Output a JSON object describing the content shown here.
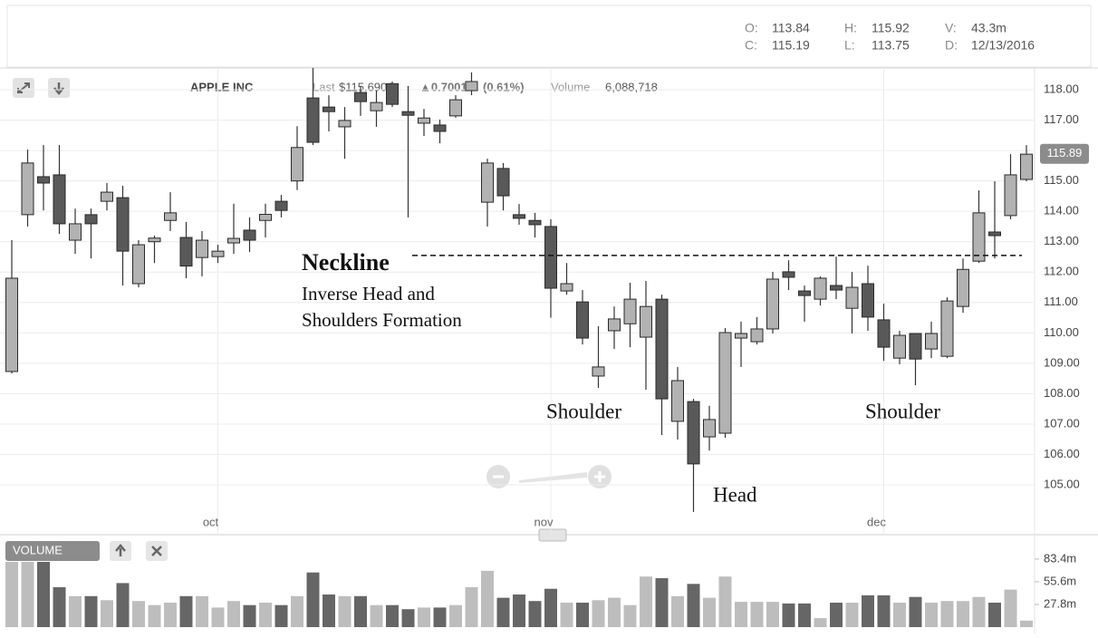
{
  "header": {
    "stats": [
      {
        "label": "O:",
        "value": "113.84"
      },
      {
        "label": "H:",
        "value": "115.92"
      },
      {
        "label": "V:",
        "value": "43.3m"
      },
      {
        "label": "C:",
        "value": "115.19"
      },
      {
        "label": "L:",
        "value": "113.75"
      },
      {
        "label": "D:",
        "value": "12/13/2016"
      }
    ]
  },
  "chart_data": [
    {
      "type": "candlestick",
      "title": "APPLE INC",
      "last_label": "Last",
      "last": "$115.6901",
      "change": "▲0.7001",
      "change_pct": "(0.61%)",
      "volume_label": "Volume",
      "volume": "6,088,718",
      "categories": [
        null,
        null,
        null,
        null,
        null,
        null,
        null,
        null,
        null,
        null,
        null,
        null,
        null,
        "oct",
        null,
        null,
        null,
        null,
        null,
        null,
        null,
        null,
        null,
        null,
        null,
        null,
        null,
        null,
        null,
        null,
        null,
        null,
        null,
        null,
        "nov",
        null,
        null,
        null,
        null,
        null,
        null,
        null,
        null,
        null,
        null,
        null,
        null,
        null,
        null,
        null,
        null,
        null,
        null,
        null,
        null,
        "dec",
        null,
        null,
        null,
        null,
        null,
        null,
        null,
        null,
        null
      ],
      "open": [
        108.73,
        113.89,
        115.14,
        115.2,
        113.05,
        113.89,
        114.33,
        114.45,
        111.62,
        113.0,
        113.7,
        113.14,
        112.48,
        112.51,
        112.96,
        113.38,
        113.7,
        114.33,
        115.0,
        117.73,
        117.43,
        116.78,
        117.91,
        117.31,
        118.2,
        117.28,
        116.9,
        116.84,
        117.14,
        117.97,
        114.3,
        115.41,
        113.89,
        113.7,
        113.5,
        111.38,
        111.02,
        108.58,
        110.07,
        110.3,
        109.86,
        111.11,
        107.09,
        107.74,
        106.58,
        106.7,
        109.83,
        109.71,
        110.13,
        112.01,
        111.38,
        111.11,
        111.56,
        110.81,
        111.62,
        110.43,
        109.17,
        109.98,
        109.47,
        109.23,
        110.87,
        112.36,
        113.32,
        113.86,
        115.05
      ],
      "high": [
        113.05,
        116.03,
        116.18,
        116.18,
        114.09,
        114.09,
        114.93,
        114.84,
        113.05,
        113.2,
        114.63,
        113.65,
        113.35,
        112.9,
        114.25,
        113.8,
        114.25,
        114.54,
        116.8,
        118.72,
        117.82,
        117.43,
        118.12,
        117.97,
        118.27,
        118.12,
        117.37,
        117.02,
        117.82,
        118.57,
        115.73,
        115.59,
        114.24,
        113.95,
        113.74,
        112.3,
        111.41,
        110.22,
        110.87,
        111.65,
        111.71,
        111.26,
        108.88,
        107.83,
        107.6,
        110.16,
        110.37,
        110.52,
        112.01,
        112.39,
        111.56,
        111.86,
        112.51,
        112.01,
        112.21,
        110.96,
        110.07,
        109.98,
        110.37,
        111.17,
        112.45,
        114.69,
        114.99,
        115.88,
        116.18
      ],
      "low": [
        108.67,
        113.5,
        114.03,
        113.26,
        112.6,
        112.45,
        114.03,
        111.56,
        111.5,
        112.3,
        113.35,
        111.8,
        111.86,
        112.3,
        112.6,
        112.66,
        113.14,
        113.8,
        114.7,
        116.18,
        116.63,
        115.73,
        117.14,
        116.78,
        117.43,
        113.8,
        116.48,
        116.24,
        117.08,
        117.82,
        113.5,
        114.03,
        113.56,
        113.14,
        110.5,
        111.26,
        109.62,
        108.19,
        109.47,
        109.53,
        108.13,
        106.64,
        106.49,
        104.11,
        106.13,
        106.55,
        108.88,
        109.62,
        109.98,
        111.41,
        110.37,
        110.9,
        111.11,
        109.98,
        110.07,
        109.08,
        108.97,
        108.28,
        109.17,
        109.17,
        110.66,
        112.3,
        112.45,
        113.74,
        114.99
      ],
      "close": [
        111.8,
        115.59,
        114.93,
        113.59,
        113.59,
        113.59,
        114.63,
        112.69,
        112.9,
        113.12,
        113.95,
        112.2,
        113.05,
        112.69,
        113.11,
        113.05,
        113.9,
        114.03,
        116.1,
        116.27,
        117.28,
        116.99,
        117.61,
        117.58,
        117.52,
        117.16,
        117.07,
        116.63,
        117.67,
        118.27,
        115.59,
        114.51,
        113.77,
        113.56,
        111.47,
        111.62,
        109.83,
        108.88,
        110.46,
        111.11,
        110.87,
        107.83,
        108.43,
        105.69,
        107.15,
        110.01,
        109.98,
        110.13,
        111.77,
        111.83,
        111.23,
        111.8,
        111.41,
        111.5,
        110.52,
        109.53,
        109.92,
        109.14,
        109.98,
        111.05,
        112.09,
        113.95,
        113.2,
        115.2,
        115.88
      ],
      "up_color": "#b2b2b2",
      "down_color": "#595959",
      "ylim": [
        103.4,
        118.8
      ],
      "yticks": [
        {
          "value": 105,
          "label": "105.00"
        },
        {
          "value": 106,
          "label": "106.00"
        },
        {
          "value": 107,
          "label": "107.00"
        },
        {
          "value": 108,
          "label": "108.00"
        },
        {
          "value": 109,
          "label": "109.00"
        },
        {
          "value": 110,
          "label": "110.00"
        },
        {
          "value": 111,
          "label": "111.00"
        },
        {
          "value": 112,
          "label": "112.00"
        },
        {
          "value": 113,
          "label": "113.00"
        },
        {
          "value": 114,
          "label": "114.00"
        },
        {
          "value": 115,
          "label": "115.00"
        },
        {
          "value": 116,
          "label": "116.00"
        },
        {
          "value": 117,
          "label": "117.00"
        },
        {
          "value": 118,
          "label": "118.00"
        }
      ],
      "grid": true,
      "price_marker": {
        "value": 115.89,
        "label": "115.89"
      },
      "neckline": 112.55,
      "annotations": {
        "neckline": "Neckline",
        "formation": [
          "Inverse Head and",
          "Shoulders Formation"
        ],
        "left_shoulder": "Shoulder",
        "head": "Head",
        "right_shoulder": "Shoulder"
      }
    },
    {
      "type": "bar",
      "title": "VOLUME",
      "values": [
        80,
        80,
        80,
        49,
        38,
        38,
        33,
        54,
        32,
        27,
        30,
        38,
        38,
        24,
        32,
        27,
        30,
        27,
        38,
        67,
        40,
        38,
        38,
        27,
        27,
        22,
        24,
        24,
        27,
        49,
        69,
        36,
        40,
        32,
        47,
        30,
        30,
        33,
        36,
        27,
        62,
        60,
        38,
        53,
        36,
        62,
        31,
        31,
        31,
        29,
        29,
        11,
        30,
        30,
        39,
        39,
        30,
        37,
        30,
        32,
        32,
        37,
        30,
        46,
        8
      ],
      "up_color": "#bdbdbd",
      "down_color": "#666666",
      "ylim": [
        0,
        104
      ],
      "yticks": [
        {
          "value": 27.8,
          "label": "27.8m"
        },
        {
          "value": 55.6,
          "label": "55.6m"
        },
        {
          "value": 83.4,
          "label": "83.4m"
        }
      ]
    }
  ]
}
